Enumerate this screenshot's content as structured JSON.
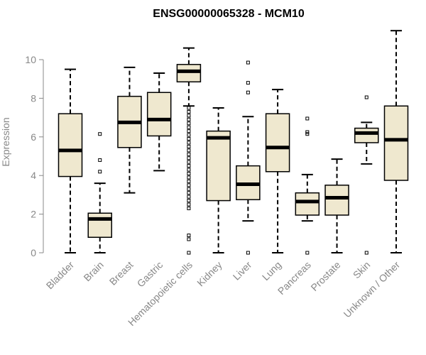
{
  "chart_data": {
    "type": "box",
    "title": "ENSG00000065328 - MCM10",
    "ylabel": "Expression",
    "xlabel": "",
    "ylim": [
      0,
      11.5
    ],
    "yticks": [
      0,
      2,
      4,
      6,
      8,
      10
    ],
    "grid": false,
    "box_fill": "#efe8cf",
    "categories": [
      "Bladder",
      "Brain",
      "Breast",
      "Gastric",
      "Hematopoietic cells",
      "Kidney",
      "Liver",
      "Lung",
      "Pancreas",
      "Prostate",
      "Skin",
      "Unknown / Other"
    ],
    "boxes": [
      {
        "whisker_low": 0.0,
        "q1": 3.95,
        "median": 5.3,
        "q3": 7.2,
        "whisker_high": 9.5,
        "outliers": []
      },
      {
        "whisker_low": 0.0,
        "q1": 0.8,
        "median": 1.75,
        "q3": 2.05,
        "whisker_high": 3.6,
        "outliers": [
          4.2,
          4.8,
          6.15
        ]
      },
      {
        "whisker_low": 3.1,
        "q1": 5.45,
        "median": 6.75,
        "q3": 8.1,
        "whisker_high": 9.6,
        "outliers": []
      },
      {
        "whisker_low": 4.25,
        "q1": 6.05,
        "median": 6.9,
        "q3": 8.3,
        "whisker_high": 9.3,
        "outliers": []
      },
      {
        "whisker_low": 7.6,
        "q1": 8.85,
        "median": 9.4,
        "q3": 9.75,
        "whisker_high": 10.6,
        "outliers": [
          0.0,
          0.7,
          0.9,
          2.3,
          2.5,
          2.7,
          2.9,
          3.1,
          3.3,
          3.5,
          3.7,
          3.9,
          4.1,
          4.3,
          4.5,
          4.7,
          4.9,
          5.1,
          5.3,
          5.5,
          5.7,
          5.9,
          6.1,
          6.3,
          6.5,
          6.7,
          6.9,
          7.1,
          7.3,
          7.5
        ]
      },
      {
        "whisker_low": 0.0,
        "q1": 2.7,
        "median": 5.95,
        "q3": 6.3,
        "whisker_high": 7.5,
        "outliers": []
      },
      {
        "whisker_low": 1.65,
        "q1": 2.75,
        "median": 3.55,
        "q3": 4.5,
        "whisker_high": 7.05,
        "outliers": [
          0.0,
          8.3,
          8.8,
          9.85
        ]
      },
      {
        "whisker_low": 0.0,
        "q1": 4.2,
        "median": 5.45,
        "q3": 7.2,
        "whisker_high": 8.45,
        "outliers": []
      },
      {
        "whisker_low": 1.65,
        "q1": 1.95,
        "median": 2.65,
        "q3": 3.1,
        "whisker_high": 4.05,
        "outliers": [
          0.0,
          6.15,
          6.25,
          6.95
        ]
      },
      {
        "whisker_low": 0.0,
        "q1": 1.95,
        "median": 2.85,
        "q3": 3.5,
        "whisker_high": 4.85,
        "outliers": []
      },
      {
        "whisker_low": 4.6,
        "q1": 5.7,
        "median": 6.2,
        "q3": 6.45,
        "whisker_high": 6.75,
        "outliers": [
          0.0,
          8.05
        ]
      },
      {
        "whisker_low": 0.0,
        "q1": 3.75,
        "median": 5.85,
        "q3": 7.6,
        "whisker_high": 11.5,
        "outliers": []
      }
    ]
  }
}
